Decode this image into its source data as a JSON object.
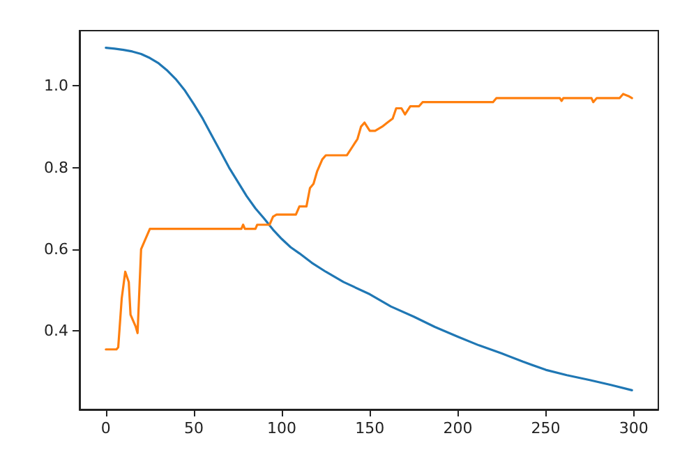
{
  "chart_data": {
    "type": "line",
    "xlim": [
      -15,
      314
    ],
    "ylim": [
      0.208,
      1.135
    ],
    "xticks": [
      0,
      50,
      100,
      150,
      200,
      250,
      300
    ],
    "yticks": [
      0.4,
      0.6,
      0.8,
      {
        "value": 1,
        "label": "1.0"
      }
    ],
    "grid": false,
    "marker": "none",
    "line_style": "solid",
    "series": [
      {
        "color": "#1f77b4",
        "x": [
          0,
          5,
          10,
          15,
          20,
          25,
          30,
          35,
          40,
          45,
          50,
          55,
          60,
          65,
          70,
          75,
          80,
          85,
          90,
          95,
          100,
          105,
          110,
          117,
          125,
          135,
          150,
          162,
          175,
          187,
          200,
          212,
          225,
          237,
          250,
          262,
          275,
          287,
          299
        ],
        "values": [
          1.093,
          1.091,
          1.088,
          1.084,
          1.078,
          1.068,
          1.055,
          1.037,
          1.015,
          0.988,
          0.955,
          0.92,
          0.88,
          0.84,
          0.8,
          0.765,
          0.73,
          0.7,
          0.675,
          0.648,
          0.625,
          0.605,
          0.59,
          0.567,
          0.545,
          0.52,
          0.49,
          0.46,
          0.435,
          0.41,
          0.386,
          0.365,
          0.345,
          0.325,
          0.305,
          0.292,
          0.28,
          0.268,
          0.255
        ]
      },
      {
        "color": "#ff7f0e",
        "x": [
          0,
          6,
          7,
          9,
          11,
          13,
          14,
          17,
          18,
          20,
          22,
          25,
          77,
          78,
          79,
          85,
          86,
          93,
          95,
          97,
          108,
          110,
          114,
          116,
          118,
          120,
          123,
          125,
          137,
          140,
          143,
          145,
          147,
          150,
          153,
          157,
          160,
          163,
          165,
          168,
          170,
          173,
          178,
          180,
          220,
          222,
          258,
          259,
          260,
          276,
          277,
          279,
          292,
          294,
          297,
          299
        ],
        "values": [
          0.355,
          0.355,
          0.36,
          0.48,
          0.545,
          0.52,
          0.44,
          0.41,
          0.395,
          0.6,
          0.62,
          0.65,
          0.65,
          0.66,
          0.65,
          0.65,
          0.66,
          0.66,
          0.68,
          0.685,
          0.685,
          0.705,
          0.705,
          0.75,
          0.76,
          0.79,
          0.82,
          0.83,
          0.83,
          0.85,
          0.87,
          0.9,
          0.91,
          0.89,
          0.89,
          0.9,
          0.91,
          0.92,
          0.945,
          0.945,
          0.93,
          0.95,
          0.95,
          0.96,
          0.96,
          0.97,
          0.97,
          0.963,
          0.97,
          0.97,
          0.96,
          0.97,
          0.97,
          0.98,
          0.975,
          0.97
        ]
      }
    ]
  }
}
